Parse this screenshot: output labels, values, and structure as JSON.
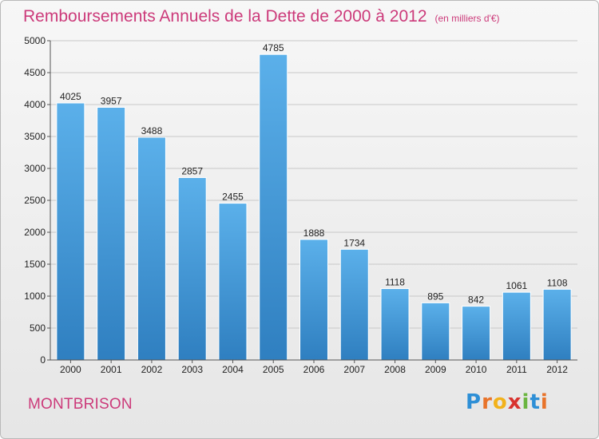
{
  "header": {
    "title": "Remboursements Annuels de la Dette de 2000 à 2012",
    "subtitle": "(en milliers d'€)"
  },
  "commune": "MONTBRISON",
  "logo": {
    "letters": [
      "P",
      "r",
      "o",
      "x",
      "i",
      "t",
      "i"
    ],
    "colors": [
      "#2e8fd6",
      "#e8732a",
      "#f2b21b",
      "#d8332f",
      "#6bb540",
      "#2e8fd6",
      "#e8732a"
    ]
  },
  "colors": {
    "title": "#cc3a7a",
    "bar_top": "#5bb0ea",
    "bar_bottom": "#2f7fc0",
    "grid": "#c8c8c8"
  },
  "chart_data": {
    "type": "bar",
    "categories": [
      "2000",
      "2001",
      "2002",
      "2003",
      "2004",
      "2005",
      "2006",
      "2007",
      "2008",
      "2009",
      "2010",
      "2011",
      "2012"
    ],
    "values": [
      4025,
      3957,
      3488,
      2857,
      2455,
      4785,
      1888,
      1734,
      1118,
      895,
      842,
      1061,
      1108
    ],
    "yticks": [
      0,
      500,
      1000,
      1500,
      2000,
      2500,
      3000,
      3500,
      4000,
      4500,
      5000
    ],
    "ylim": [
      0,
      5000
    ],
    "grid": true
  }
}
